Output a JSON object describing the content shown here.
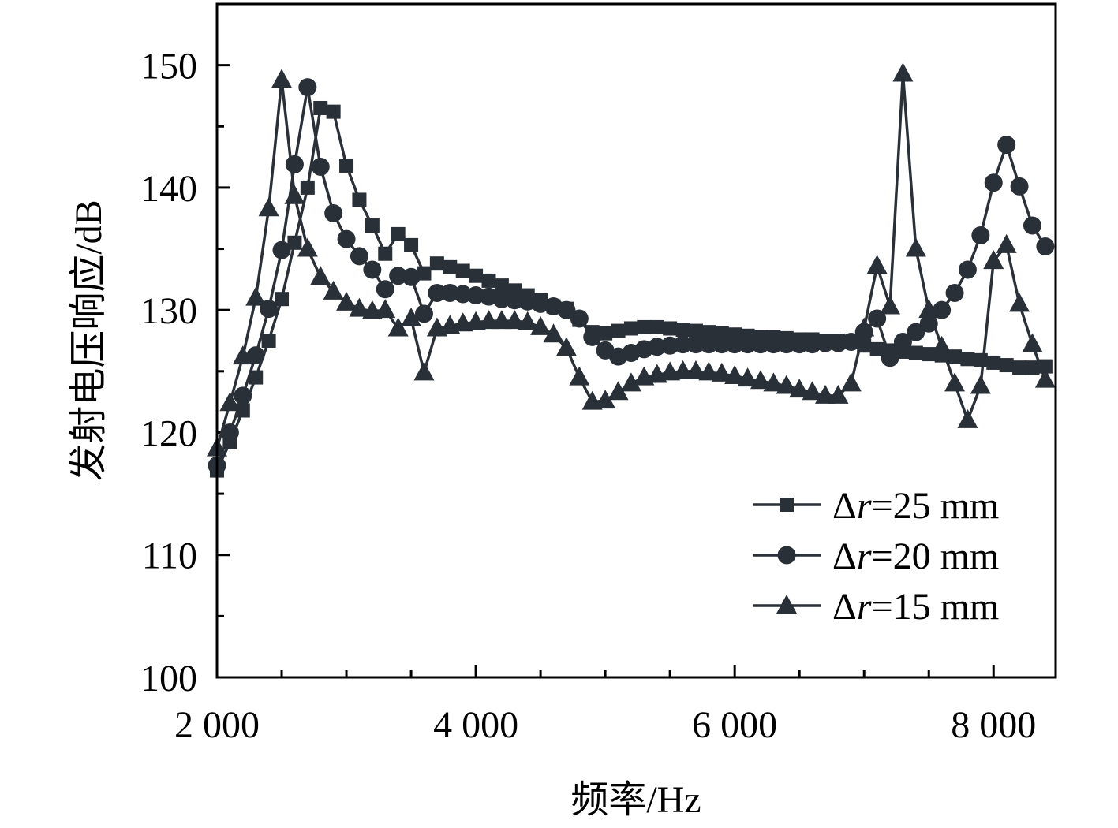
{
  "chart_data": {
    "type": "line",
    "title": "",
    "xlabel": "频率/Hz",
    "ylabel": "发射电压响应/dB",
    "xlim": [
      2000,
      8480
    ],
    "ylim": [
      100,
      155
    ],
    "grid": false,
    "legend_placement": "bottom-right",
    "x_ticks": [
      2000,
      4000,
      6000,
      8000
    ],
    "x_tick_labels": [
      "2 000",
      "4 000",
      "6 000",
      "8 000"
    ],
    "y_ticks": [
      100,
      110,
      120,
      130,
      140,
      150
    ],
    "y_tick_labels": [
      "100",
      "110",
      "120",
      "130",
      "140",
      "150"
    ],
    "color": "#2a3038",
    "x": [
      2000,
      2100,
      2200,
      2300,
      2400,
      2500,
      2600,
      2700,
      2800,
      2900,
      3000,
      3100,
      3200,
      3300,
      3400,
      3500,
      3600,
      3700,
      3800,
      3900,
      4000,
      4100,
      4200,
      4300,
      4400,
      4500,
      4600,
      4700,
      4800,
      4900,
      5000,
      5100,
      5200,
      5300,
      5400,
      5500,
      5600,
      5700,
      5800,
      5900,
      6000,
      6100,
      6200,
      6300,
      6400,
      6500,
      6600,
      6700,
      6800,
      6900,
      7000,
      7100,
      7200,
      7300,
      7400,
      7500,
      7600,
      7700,
      7800,
      7900,
      8000,
      8100,
      8200,
      8300,
      8400
    ],
    "series": [
      {
        "name": "Δr=25 mm",
        "prefix": "Δ",
        "var": "r",
        "suffix": "=25 mm",
        "marker": "square",
        "values": [
          116.9,
          119.2,
          121.8,
          124.5,
          127.5,
          130.9,
          135.5,
          140.0,
          146.5,
          146.2,
          141.8,
          139.0,
          136.9,
          134.6,
          136.2,
          135.3,
          133.0,
          133.8,
          133.5,
          133.2,
          132.8,
          132.4,
          132.0,
          131.6,
          131.2,
          130.8,
          130.3,
          130.1,
          129.2,
          128.2,
          128.1,
          128.3,
          128.5,
          128.6,
          128.6,
          128.5,
          128.4,
          128.3,
          128.2,
          128.1,
          128.0,
          127.9,
          127.8,
          127.8,
          127.7,
          127.6,
          127.6,
          127.5,
          127.5,
          127.4,
          127.1,
          126.8,
          126.7,
          126.6,
          126.5,
          126.4,
          126.3,
          126.2,
          126.0,
          125.9,
          125.7,
          125.5,
          125.3,
          125.3,
          125.4
        ]
      },
      {
        "name": "Δr=20 mm",
        "prefix": "Δ",
        "var": "r",
        "suffix": "=20 mm",
        "marker": "circle",
        "values": [
          117.3,
          120.0,
          123.0,
          126.3,
          130.1,
          134.9,
          141.9,
          148.2,
          141.7,
          137.9,
          135.8,
          134.4,
          133.3,
          131.7,
          132.8,
          132.7,
          129.7,
          131.4,
          131.4,
          131.3,
          131.2,
          131.1,
          130.9,
          130.8,
          130.7,
          130.5,
          130.3,
          130.0,
          129.3,
          127.8,
          126.7,
          126.2,
          126.5,
          126.8,
          127.0,
          127.1,
          127.2,
          127.2,
          127.2,
          127.2,
          127.2,
          127.2,
          127.2,
          127.2,
          127.2,
          127.2,
          127.2,
          127.3,
          127.3,
          127.4,
          128.2,
          129.3,
          126.1,
          127.4,
          128.2,
          128.9,
          130.0,
          131.4,
          133.3,
          136.1,
          140.4,
          143.5,
          140.1,
          136.9,
          135.2
        ]
      },
      {
        "name": "Δr=15 mm",
        "prefix": "Δ",
        "var": "r",
        "suffix": "=15 mm",
        "marker": "triangle",
        "values": [
          118.7,
          122.4,
          126.2,
          131.0,
          138.3,
          148.8,
          139.3,
          135.0,
          132.7,
          131.5,
          130.6,
          130.1,
          129.9,
          130.0,
          128.5,
          129.3,
          124.9,
          128.5,
          128.7,
          128.9,
          129.0,
          129.1,
          129.1,
          129.1,
          129.0,
          128.6,
          128.0,
          126.9,
          124.5,
          122.5,
          122.6,
          123.3,
          124.0,
          124.5,
          124.7,
          124.9,
          125.0,
          125.0,
          124.9,
          124.8,
          124.6,
          124.4,
          124.2,
          124.0,
          123.8,
          123.5,
          123.3,
          123.0,
          123.0,
          124.0,
          128.5,
          133.6,
          130.3,
          149.3,
          135.0,
          130.0,
          127.0,
          124.0,
          121.0,
          123.8,
          134.0,
          135.3,
          130.5,
          127.2,
          124.3
        ]
      }
    ]
  }
}
